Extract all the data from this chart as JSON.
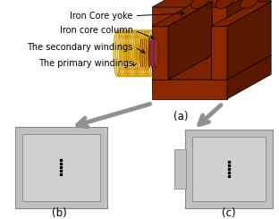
{
  "iron_color": "#8B2800",
  "iron_dark": "#5A1800",
  "iron_mid": "#7B2200",
  "coil_outer_color": "#DAA000",
  "coil_outer_dark": "#B88000",
  "secondary_color": "#8B3030",
  "secondary_dark": "#5a1010",
  "labels": [
    "Iron Core yoke",
    "Iron core column",
    "The secondary windings",
    "The primary windings"
  ],
  "sub_labels": [
    "(a)",
    "(b)",
    "(c)"
  ],
  "text_fontsize": 7.0,
  "sublabel_fontsize": 8.5
}
